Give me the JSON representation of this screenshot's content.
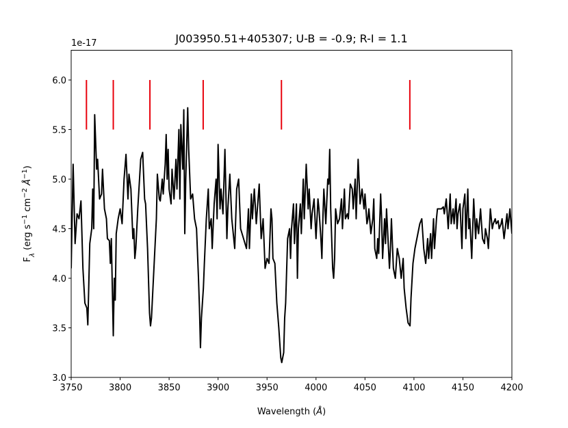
{
  "chart_data": {
    "type": "line",
    "title": "J003950.51+405307; U-B = -0.9; R-I = 1.1",
    "offset_label": "1e-17",
    "xlabel": [
      {
        "text": "Wavelength ("
      },
      {
        "text": "Å",
        "style": "italic"
      },
      {
        "text": ")"
      }
    ],
    "ylabel": [
      {
        "text": "F"
      },
      {
        "text": "λ",
        "script": "sub",
        "style": "italic"
      },
      {
        "text": " (erg s"
      },
      {
        "text": "−1",
        "script": "sup"
      },
      {
        "text": " cm"
      },
      {
        "text": "−2",
        "script": "sup"
      },
      {
        "text": " "
      },
      {
        "text": "Å",
        "style": "italic"
      },
      {
        "text": "−1",
        "script": "sup"
      },
      {
        "text": ")"
      }
    ],
    "xlim": [
      3750,
      4200
    ],
    "xticks": [
      3750,
      3800,
      3850,
      3900,
      3950,
      4000,
      4050,
      4100,
      4150,
      4200
    ],
    "ylim": [
      3.0,
      6.3
    ],
    "yticks": [
      {
        "value": 3,
        "label": "3.0"
      },
      {
        "value": 3.5,
        "label": "3.5"
      },
      {
        "value": 4,
        "label": "4.0"
      },
      {
        "value": 4.5,
        "label": "4.5"
      },
      {
        "value": 5,
        "label": "5.0"
      },
      {
        "value": 5.5,
        "label": "5.5"
      },
      {
        "value": 6,
        "label": "6.0"
      }
    ],
    "x": [
      3750,
      3752,
      3754,
      3756,
      3758,
      3760,
      3762,
      3764,
      3766,
      3767,
      3769,
      3771,
      3772,
      3773,
      3774,
      3776,
      3777,
      3779,
      3781,
      3782,
      3784,
      3786,
      3787,
      3789,
      3790,
      3791,
      3793,
      3794,
      3795,
      3796,
      3798,
      3800,
      3802,
      3804,
      3806,
      3808,
      3809,
      3811,
      3813,
      3814,
      3815,
      3816,
      3818,
      3821,
      3823,
      3825,
      3826,
      3828,
      3830,
      3831,
      3832,
      3834,
      3836,
      3837,
      3838,
      3840,
      3841,
      3843,
      3844,
      3846,
      3847,
      3848,
      3849,
      3850,
      3852,
      3853,
      3855,
      3857,
      3858,
      3860,
      3861,
      3862,
      3864,
      3865,
      3866,
      3867,
      3869,
      3870,
      3872,
      3874,
      3876,
      3878,
      3880,
      3881,
      3882,
      3883,
      3885,
      3886,
      3888,
      3890,
      3891,
      3893,
      3894,
      3896,
      3898,
      3899,
      3900,
      3902,
      3903,
      3905,
      3907,
      3909,
      3910,
      3912,
      3914,
      3917,
      3919,
      3921,
      3923,
      3926,
      3929,
      3931,
      3932,
      3934,
      3935,
      3937,
      3939,
      3942,
      3944,
      3946,
      3948,
      3950,
      3952,
      3954,
      3955,
      3956,
      3958,
      3960,
      3962,
      3964,
      3965,
      3967,
      3968,
      3969,
      3971,
      3973,
      3974,
      3975,
      3977,
      3978,
      3980,
      3981,
      3982,
      3984,
      3985,
      3987,
      3988,
      3990,
      3992,
      3993,
      3995,
      3996,
      3998,
      4000,
      4002,
      4003,
      4005,
      4006,
      4007,
      4008,
      4010,
      4012,
      4013,
      4014,
      4015,
      4016,
      4017,
      4018,
      4019,
      4020,
      4022,
      4024,
      4026,
      4027,
      4029,
      4030,
      4032,
      4033,
      4035,
      4037,
      4038,
      4040,
      4041,
      4043,
      4045,
      4047,
      4049,
      4050,
      4052,
      4053,
      4054,
      4056,
      4058,
      4059,
      4060,
      4062,
      4063,
      4064,
      4066,
      4067,
      4068,
      4070,
      4071,
      4072,
      4074,
      4075,
      4076,
      4077,
      4079,
      4081,
      4083,
      4085,
      4087,
      4089,
      4090,
      4092,
      4094,
      4096,
      4097,
      4099,
      4101,
      4104,
      4106,
      4108,
      4110,
      4112,
      4114,
      4115,
      4117,
      4118,
      4120,
      4121,
      4123,
      4124,
      4127,
      4128,
      4130,
      4131,
      4133,
      4135,
      4137,
      4138,
      4140,
      4141,
      4143,
      4144,
      4145,
      4147,
      4149,
      4150,
      4152,
      4153,
      4155,
      4156,
      4157,
      4159,
      4161,
      4163,
      4164,
      4166,
      4168,
      4170,
      4172,
      4173,
      4175,
      4176,
      4178,
      4180,
      4181,
      4183,
      4184,
      4186,
      4187,
      4189,
      4190,
      4192,
      4195,
      4196,
      4198,
      4200
    ],
    "series": [
      {
        "color": "#000000",
        "values": [
          4.1,
          5.15,
          4.35,
          4.65,
          4.6,
          4.78,
          4.1,
          3.75,
          3.7,
          3.53,
          4.35,
          4.5,
          4.9,
          4.5,
          5.65,
          5.1,
          5.2,
          4.8,
          4.85,
          5.1,
          4.7,
          4.6,
          4.4,
          4.38,
          4.15,
          4.4,
          3.42,
          4.0,
          3.78,
          4.45,
          4.6,
          4.7,
          4.55,
          5.0,
          5.25,
          4.8,
          5.05,
          4.9,
          4.4,
          4.5,
          4.2,
          4.3,
          4.7,
          5.2,
          5.27,
          4.8,
          4.75,
          4.3,
          3.65,
          3.52,
          3.6,
          4.0,
          4.4,
          4.6,
          5.05,
          4.8,
          4.78,
          5.0,
          4.85,
          5.15,
          5.45,
          5.0,
          5.3,
          4.9,
          4.75,
          5.1,
          4.8,
          5.2,
          4.9,
          5.5,
          4.8,
          5.55,
          5.1,
          5.7,
          4.45,
          5.0,
          5.72,
          5.3,
          4.8,
          4.85,
          4.6,
          4.5,
          4.0,
          3.7,
          3.3,
          3.6,
          3.9,
          4.15,
          4.6,
          4.9,
          4.5,
          4.6,
          4.3,
          4.75,
          5.0,
          4.6,
          5.35,
          4.7,
          4.9,
          4.65,
          5.3,
          4.4,
          4.7,
          5.05,
          4.6,
          4.3,
          4.9,
          5.0,
          4.5,
          4.4,
          4.3,
          4.7,
          4.3,
          4.85,
          4.6,
          4.9,
          4.55,
          4.95,
          4.4,
          4.6,
          4.1,
          4.2,
          4.15,
          4.7,
          4.6,
          4.2,
          4.15,
          3.75,
          3.5,
          3.2,
          3.15,
          3.25,
          3.6,
          3.75,
          4.4,
          4.5,
          4.2,
          4.5,
          4.75,
          4.35,
          4.75,
          4.0,
          4.5,
          4.75,
          4.45,
          5.0,
          4.6,
          5.15,
          4.7,
          4.9,
          4.5,
          4.65,
          4.8,
          4.4,
          4.8,
          4.7,
          4.4,
          4.2,
          4.6,
          4.9,
          4.55,
          5.0,
          4.95,
          5.3,
          4.7,
          4.4,
          4.1,
          4.0,
          4.2,
          4.7,
          4.55,
          4.6,
          4.8,
          4.5,
          4.9,
          4.6,
          4.65,
          4.6,
          4.95,
          4.9,
          4.7,
          5.0,
          4.6,
          5.2,
          4.75,
          4.9,
          4.7,
          4.85,
          4.55,
          4.6,
          4.7,
          4.45,
          4.6,
          4.8,
          4.3,
          4.2,
          4.4,
          4.25,
          4.85,
          4.6,
          4.2,
          4.6,
          4.35,
          4.7,
          4.3,
          4.1,
          4.3,
          4.6,
          4.1,
          4.0,
          4.3,
          4.2,
          4.0,
          4.2,
          3.9,
          3.7,
          3.55,
          3.52,
          3.8,
          4.15,
          4.3,
          4.45,
          4.55,
          4.6,
          4.3,
          4.15,
          4.4,
          4.2,
          4.45,
          4.2,
          4.6,
          4.3,
          4.6,
          4.7,
          4.7,
          4.7,
          4.72,
          4.65,
          4.8,
          4.5,
          4.85,
          4.55,
          4.7,
          4.55,
          4.8,
          4.5,
          4.65,
          4.75,
          4.3,
          4.7,
          4.85,
          4.4,
          4.9,
          4.5,
          4.6,
          4.2,
          4.8,
          4.4,
          4.6,
          4.45,
          4.7,
          4.4,
          4.35,
          4.5,
          4.4,
          4.3,
          4.7,
          4.5,
          4.55,
          4.6,
          4.55,
          4.58,
          4.5,
          4.55,
          4.6,
          4.4,
          4.65,
          4.5,
          4.7,
          4.45
        ]
      }
    ],
    "markers": {
      "color": "#e8000b",
      "x": [
        3765.6,
        3793.0,
        3830.4,
        3884.8,
        3964.7,
        4095.8
      ],
      "ymin": 5.5,
      "ymax": 6.0
    }
  }
}
